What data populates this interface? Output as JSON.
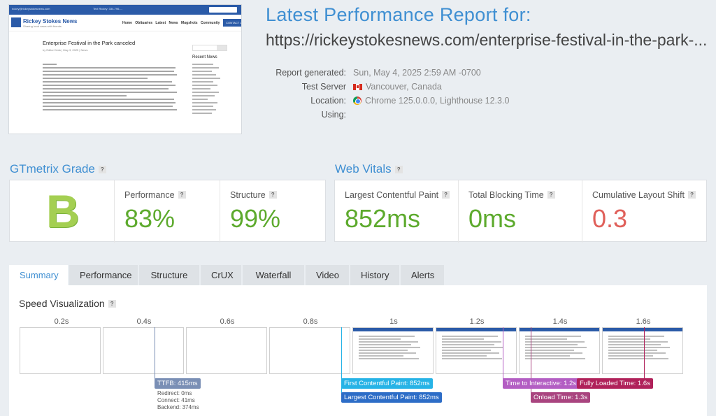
{
  "report": {
    "title": "Latest Performance Report for:",
    "url": "https://rickeystokesnews.com/enterprise-festival-in-the-park-..."
  },
  "meta": {
    "generated_label": "Report generated:",
    "generated_value": "Sun, May 4, 2025 2:59 AM -0700",
    "location_label": "Test Server Location:",
    "location_value": "Vancouver, Canada",
    "using_label": "Using:",
    "using_value": "Chrome 125.0.0.0, Lighthouse 12.3.0"
  },
  "thumbnail": {
    "brand": "Rickey Stokes News",
    "tagline": "Sharing local news with friends",
    "nav": "Home Obituaries Latest News Mugshots Community",
    "contact": "CONTACT US",
    "article_title": "Enterprise Festival in the Park canceled",
    "recent": "Recent News"
  },
  "grade": {
    "section_title": "GTmetrix Grade",
    "letter": "B",
    "performance_label": "Performance",
    "performance_value": "83%",
    "structure_label": "Structure",
    "structure_value": "99%"
  },
  "vitals": {
    "section_title": "Web Vitals",
    "lcp_label": "Largest Contentful Paint",
    "lcp_value": "852ms",
    "tbt_label": "Total Blocking Time",
    "tbt_value": "0ms",
    "cls_label": "Cumulative Layout Shift",
    "cls_value": "0.3"
  },
  "tabs": [
    "Summary",
    "Performance",
    "Structure",
    "CrUX",
    "Waterfall",
    "Video",
    "History",
    "Alerts"
  ],
  "speed": {
    "title": "Speed Visualization",
    "ticks": [
      "0.2s",
      "0.4s",
      "0.6s",
      "0.8s",
      "1s",
      "1.2s",
      "1.4s",
      "1.6s"
    ],
    "ttfb": "TTFB: 415ms",
    "redirect": "Redirect: 0ms",
    "connect": "Connect: 41ms",
    "backend": "Backend: 374ms",
    "fcp": "First Contentful Paint: 852ms",
    "lcp": "Largest Contentful Paint: 852ms",
    "tti": "Time to Interactive: 1.2s",
    "onload": "Onload Time: 1.3s",
    "fully_loaded": "Fully Loaded Time: 1.6s"
  },
  "colors": {
    "accent": "#3f8fd2",
    "good": "#5daa2d",
    "poor": "#e0605a",
    "ttfb": "#7a8fb5",
    "fcp": "#26b3e6",
    "lcp": "#2d6dc7",
    "tti": "#b35ec3",
    "onload": "#a9447f",
    "fully": "#b0215a"
  }
}
